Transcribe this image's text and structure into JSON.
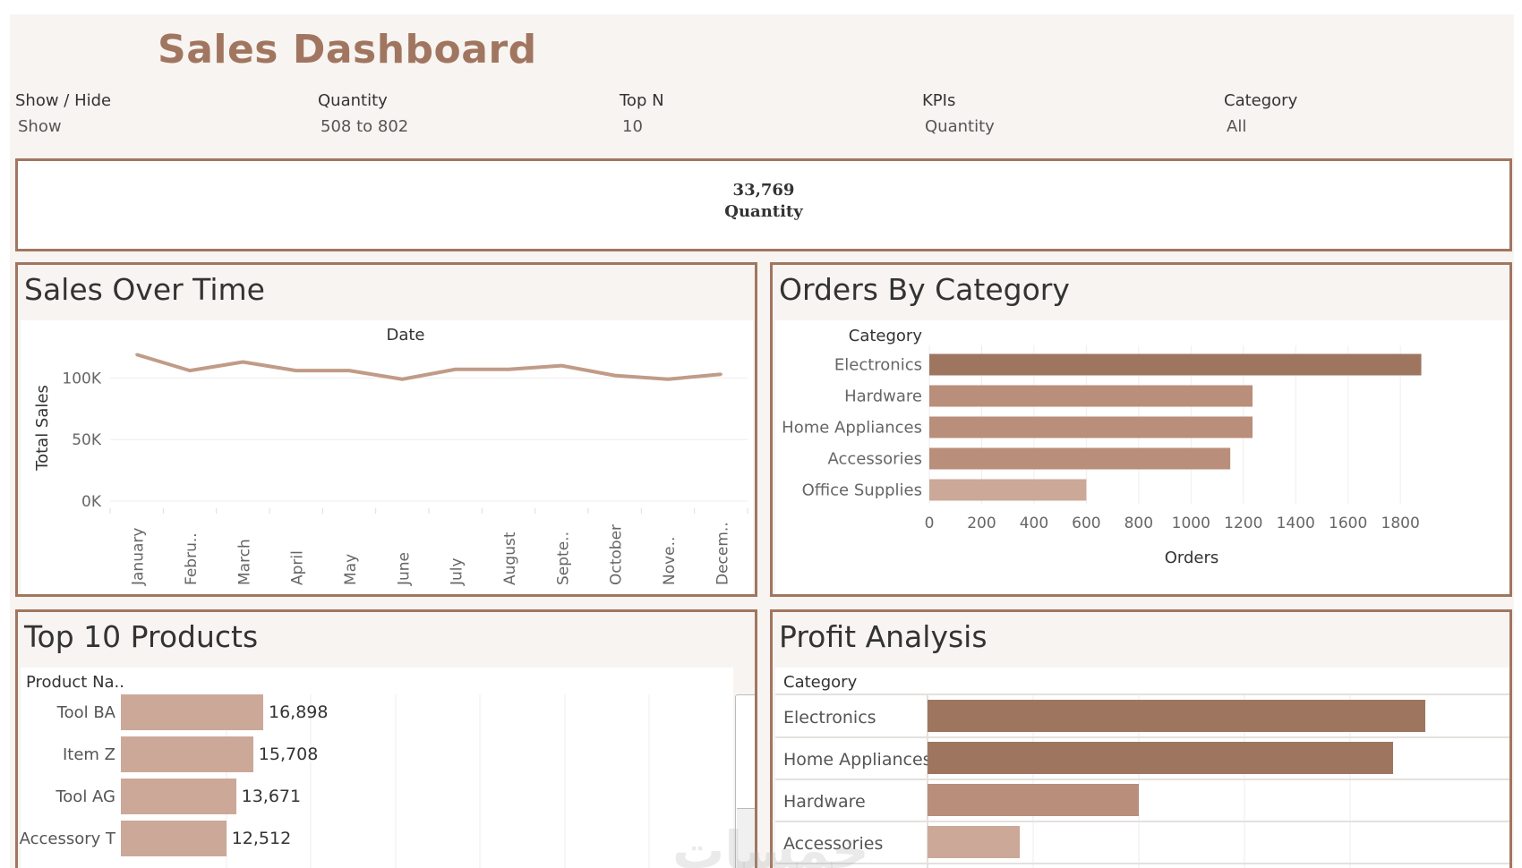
{
  "dashboard": {
    "title": "Sales Dashboard"
  },
  "filters": [
    {
      "label": "Show / Hide",
      "value": "Show"
    },
    {
      "label": "Quantity",
      "value": "508 to 802"
    },
    {
      "label": "Top N",
      "value": "10"
    },
    {
      "label": "KPIs",
      "value": "Quantity"
    },
    {
      "label": "Category",
      "value": "All"
    }
  ],
  "kpi": {
    "value": "33,769",
    "label": "Quantity"
  },
  "colors": {
    "accent": "#a17660",
    "bar_dark": "#9e7660",
    "bar_mid": "#b98e7a",
    "bar_light": "#cca898",
    "line": "#c19b87"
  },
  "sales_over_time": {
    "title": "Sales Over Time"
  },
  "orders_by_category": {
    "title": "Orders By Category"
  },
  "top_products": {
    "title": "Top 10 Products",
    "column_header": "Product Na..",
    "rows": [
      {
        "name": "Tool BA",
        "value": 16898,
        "label": "16,898"
      },
      {
        "name": "Item Z",
        "value": 15708,
        "label": "15,708"
      },
      {
        "name": "Tool AG",
        "value": 13671,
        "label": "13,671"
      },
      {
        "name": "Accessory T",
        "value": 12512,
        "label": "12,512"
      }
    ]
  },
  "profit_analysis": {
    "title": "Profit Analysis",
    "column_header": "Category",
    "rows": [
      {
        "name": "Electronics",
        "value": 1.0
      },
      {
        "name": "Home Appliances",
        "value": 0.935
      },
      {
        "name": "Hardware",
        "value": 0.425
      },
      {
        "name": "Accessories",
        "value": 0.185
      }
    ]
  },
  "watermark": "خمسات",
  "chart_data": [
    {
      "type": "line",
      "title": "Sales Over Time",
      "xlabel": "Date",
      "ylabel": "Total Sales",
      "categories": [
        "January",
        "Febru..",
        "March",
        "April",
        "May",
        "June",
        "July",
        "August",
        "Septe..",
        "October",
        "Nove..",
        "Decem.."
      ],
      "values": [
        119000,
        106000,
        113000,
        106000,
        106000,
        99000,
        107000,
        107000,
        110000,
        102000,
        99000,
        103000
      ],
      "yticks": [
        0,
        50000,
        100000
      ],
      "ytick_labels": [
        "0K",
        "50K",
        "100K"
      ],
      "ylim": [
        0,
        125000
      ]
    },
    {
      "type": "bar",
      "orientation": "horizontal",
      "title": "Orders By Category",
      "ylabel": "Category",
      "xlabel": "Orders",
      "categories": [
        "Electronics",
        "Hardware",
        "Home Appliances",
        "Accessories",
        "Office Supplies"
      ],
      "values": [
        1880,
        1235,
        1235,
        1150,
        600
      ],
      "xticks": [
        0,
        200,
        400,
        600,
        800,
        1000,
        1200,
        1400,
        1600,
        1800
      ],
      "xlim": [
        0,
        1950
      ]
    },
    {
      "type": "bar",
      "orientation": "horizontal",
      "title": "Top 10 Products",
      "categories": [
        "Tool BA",
        "Item Z",
        "Tool AG",
        "Accessory T"
      ],
      "values": [
        16898,
        15708,
        13671,
        12512
      ]
    },
    {
      "type": "bar",
      "orientation": "horizontal",
      "title": "Profit Analysis",
      "categories": [
        "Electronics",
        "Home Appliances",
        "Hardware",
        "Accessories"
      ],
      "values": [
        1.0,
        0.935,
        0.425,
        0.185
      ]
    }
  ]
}
